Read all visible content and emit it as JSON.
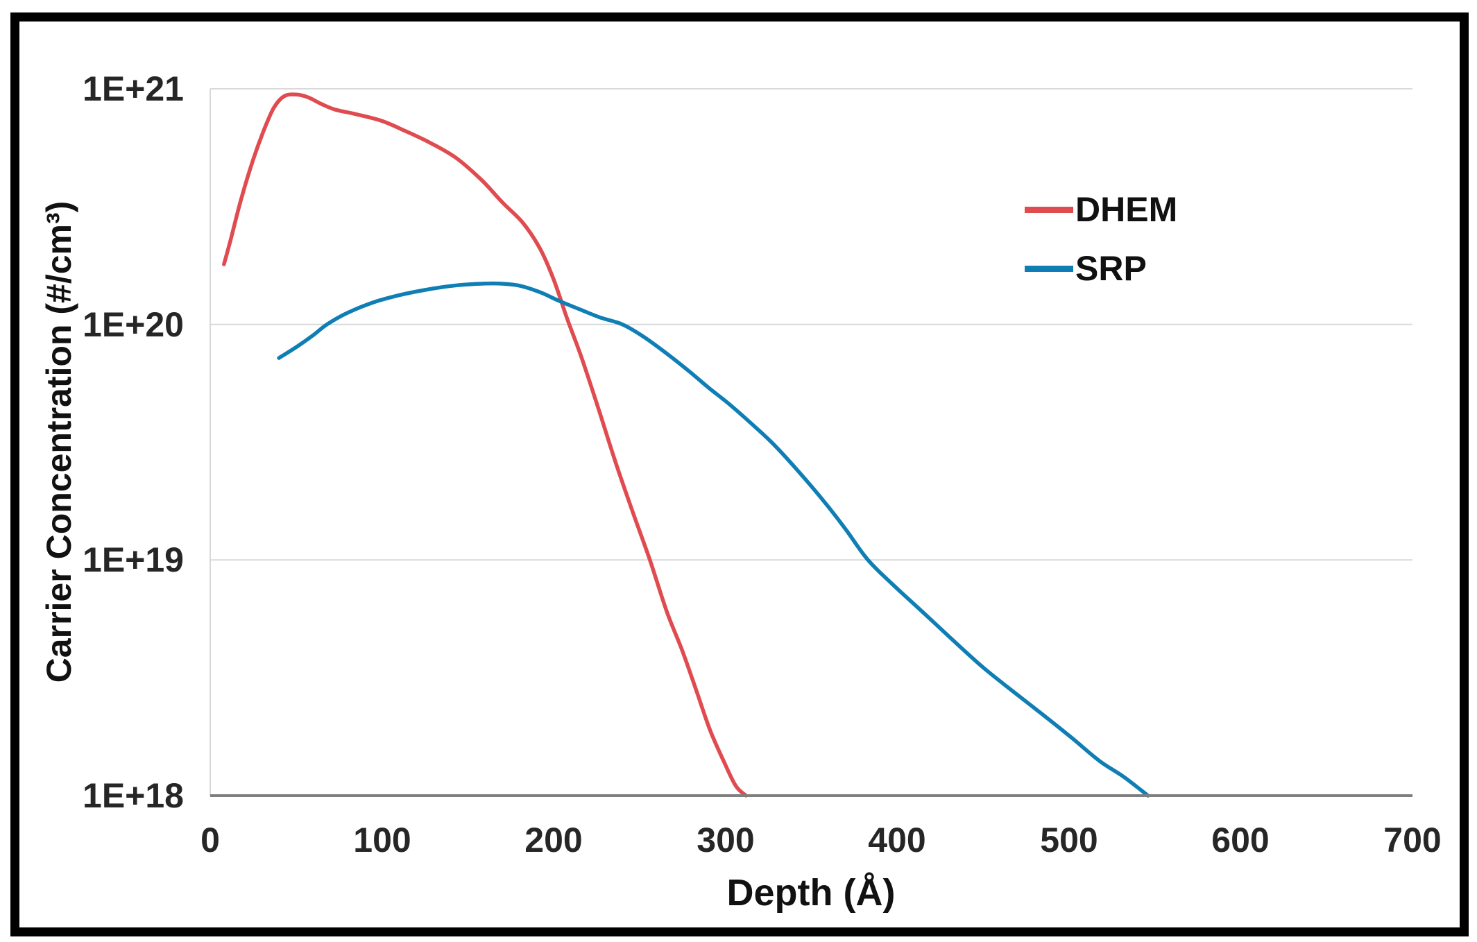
{
  "figure": {
    "background_color": "#ffffff",
    "frame_color": "#000000"
  },
  "chart_data": {
    "type": "line",
    "title": "",
    "xlabel": "Depth (Å)",
    "ylabel": "Carrier Concentration (#/cm³)",
    "xlim": [
      0,
      700
    ],
    "ylim": [
      1e+18,
      1e+21
    ],
    "y_scale": "log",
    "grid": "horizontal",
    "legend_position": "upper-right-inside",
    "colors": {
      "gridline": "#d9d9d9",
      "plot_border": "#d6d9dc",
      "axis_line": "#7f7f7f",
      "tick_text": "#262626"
    },
    "x_ticks": [
      {
        "label": "0",
        "value": 0
      },
      {
        "label": "100",
        "value": 100
      },
      {
        "label": "200",
        "value": 200
      },
      {
        "label": "300",
        "value": 300
      },
      {
        "label": "400",
        "value": 400
      },
      {
        "label": "500",
        "value": 500
      },
      {
        "label": "600",
        "value": 600
      },
      {
        "label": "700",
        "value": 700
      }
    ],
    "y_ticks": [
      {
        "label": "1E+21",
        "value": 1e+21
      },
      {
        "label": "1E+20",
        "value": 1e+20
      },
      {
        "label": "1E+19",
        "value": 1e+19
      },
      {
        "label": "1E+18",
        "value": 1e+18
      }
    ],
    "series": [
      {
        "name": "DHEM",
        "color": "#e04b50",
        "points": [
          [
            8,
            1.8e+20
          ],
          [
            12,
            2.3e+20
          ],
          [
            18,
            3.4e+20
          ],
          [
            25,
            5e+20
          ],
          [
            31,
            6.6e+20
          ],
          [
            37,
            8.3e+20
          ],
          [
            43,
            9.3e+20
          ],
          [
            50,
            9.45e+20
          ],
          [
            57,
            9.2e+20
          ],
          [
            65,
            8.6e+20
          ],
          [
            73,
            8.15e+20
          ],
          [
            85,
            7.8e+20
          ],
          [
            100,
            7.3e+20
          ],
          [
            114,
            6.6e+20
          ],
          [
            128,
            5.9e+20
          ],
          [
            143,
            5.1e+20
          ],
          [
            158,
            4.1e+20
          ],
          [
            170,
            3.3e+20
          ],
          [
            182,
            2.7e+20
          ],
          [
            192,
            2.1e+20
          ],
          [
            200,
            1.55e+20
          ],
          [
            208,
            1.05e+20
          ],
          [
            216,
            7.3e+19
          ],
          [
            226,
            4.4e+19
          ],
          [
            236,
            2.6e+19
          ],
          [
            246,
            1.6e+19
          ],
          [
            256,
            1e+19
          ],
          [
            266,
            6e+18
          ],
          [
            275,
            4.1e+18
          ],
          [
            283,
            2.8e+18
          ],
          [
            291,
            1.9e+18
          ],
          [
            299,
            1.4e+18
          ],
          [
            306,
            1.1e+18
          ],
          [
            312,
            1e+18
          ]
        ]
      },
      {
        "name": "SRP",
        "color": "#0f7eb5",
        "points": [
          [
            40,
            7.2e+19
          ],
          [
            50,
            8e+19
          ],
          [
            60,
            9e+19
          ],
          [
            68,
            1e+20
          ],
          [
            80,
            1.12e+20
          ],
          [
            95,
            1.24e+20
          ],
          [
            110,
            1.33e+20
          ],
          [
            125,
            1.4e+20
          ],
          [
            140,
            1.455e+20
          ],
          [
            155,
            1.485e+20
          ],
          [
            168,
            1.49e+20
          ],
          [
            180,
            1.46e+20
          ],
          [
            192,
            1.37e+20
          ],
          [
            203,
            1.26e+20
          ],
          [
            215,
            1.16e+20
          ],
          [
            227,
            1.07e+20
          ],
          [
            240,
            1e+20
          ],
          [
            252,
            8.9e+19
          ],
          [
            265,
            7.6e+19
          ],
          [
            278,
            6.4e+19
          ],
          [
            290,
            5.4e+19
          ],
          [
            302,
            4.6e+19
          ],
          [
            315,
            3.8e+19
          ],
          [
            328,
            3.1e+19
          ],
          [
            342,
            2.4e+19
          ],
          [
            358,
            1.75e+19
          ],
          [
            370,
            1.35e+19
          ],
          [
            383,
            1e+19
          ],
          [
            398,
            7.8e+18
          ],
          [
            415,
            6e+18
          ],
          [
            432,
            4.6e+18
          ],
          [
            450,
            3.5e+18
          ],
          [
            468,
            2.75e+18
          ],
          [
            485,
            2.2e+18
          ],
          [
            502,
            1.75e+18
          ],
          [
            518,
            1.4e+18
          ],
          [
            532,
            1.2e+18
          ],
          [
            546,
            1e+18
          ]
        ]
      }
    ]
  }
}
